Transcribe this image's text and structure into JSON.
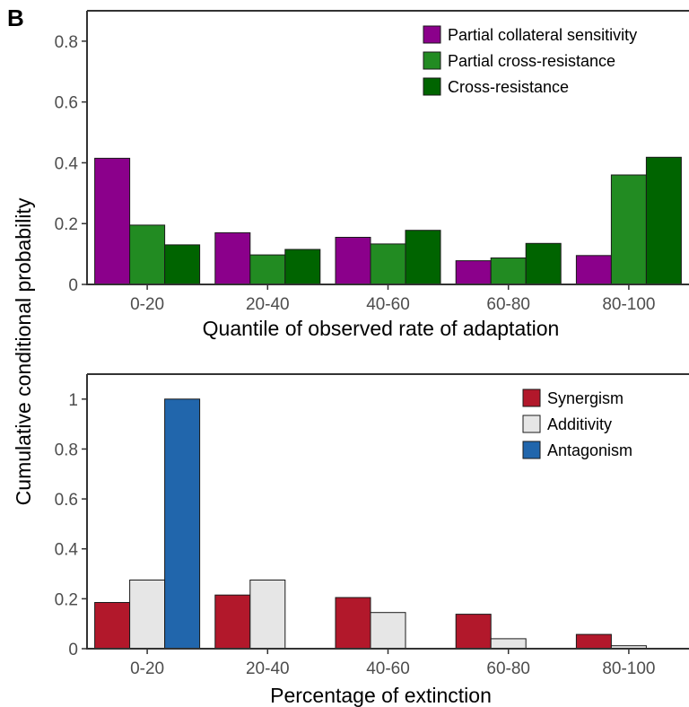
{
  "figure": {
    "panel_label": "B",
    "shared_ylabel": "Cumulative conditional probability"
  },
  "chart_data": [
    {
      "type": "bar",
      "xlabel": "Quantile of observed rate of adaptation",
      "ylabel": "",
      "categories": [
        "0-20",
        "20-40",
        "40-60",
        "60-80",
        "80-100"
      ],
      "ylim": [
        0,
        0.9
      ],
      "yticks": [
        0,
        0.2,
        0.4,
        0.6,
        0.8
      ],
      "ytick_labels": [
        "0",
        "0.2",
        "0.4",
        "0.6",
        "0.8"
      ],
      "legend_position": "top-right",
      "grid": false,
      "series": [
        {
          "name": "Partial collateral sensitivity",
          "color": "#8b008b",
          "values": [
            0.415,
            0.17,
            0.155,
            0.078,
            0.095
          ]
        },
        {
          "name": "Partial cross-resistance",
          "color": "#228b22",
          "values": [
            0.195,
            0.097,
            0.133,
            0.087,
            0.36
          ]
        },
        {
          "name": "Cross-resistance",
          "color": "#006400",
          "values": [
            0.13,
            0.115,
            0.178,
            0.135,
            0.418
          ]
        }
      ]
    },
    {
      "type": "bar",
      "xlabel": "Percentage of extinction",
      "ylabel": "",
      "categories": [
        "0-20",
        "20-40",
        "40-60",
        "60-80",
        "80-100"
      ],
      "ylim": [
        0,
        1.1
      ],
      "yticks": [
        0,
        0.2,
        0.4,
        0.6,
        0.8,
        1
      ],
      "ytick_labels": [
        "0",
        "0.2",
        "0.4",
        "0.6",
        "0.8",
        "1"
      ],
      "legend_position": "top-right",
      "grid": false,
      "series": [
        {
          "name": "Synergism",
          "color": "#b2182b",
          "values": [
            0.185,
            0.215,
            0.205,
            0.138,
            0.057
          ]
        },
        {
          "name": "Additivity",
          "color": "#e6e6e6",
          "values": [
            0.275,
            0.275,
            0.145,
            0.04,
            0.012
          ]
        },
        {
          "name": "Antagonism",
          "color": "#2166ac",
          "values": [
            1.0,
            0,
            0,
            0,
            0
          ]
        }
      ]
    }
  ]
}
